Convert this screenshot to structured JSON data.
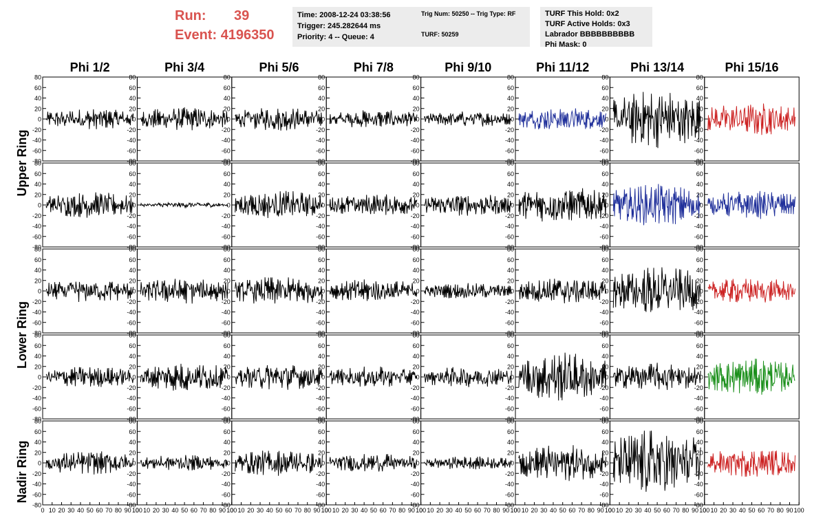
{
  "header": {
    "run_label": "Run:",
    "run_value": "39",
    "event_label": "Event:",
    "event_value": "4196350",
    "info_color": "#d9534f",
    "box1": [
      "Time: 2008-12-24 03:38:56",
      "Trigger: 245.282644 ms",
      "Priority: 4 -- Queue: 4"
    ],
    "box2": [
      "Trig Num: 50250 -- Trig Type: RF",
      "",
      "TURF: 50259"
    ],
    "box3": [
      "TURF This Hold: 0x2",
      "TURF Active Holds: 0x3",
      "Labrador BBBBBBBBBB",
      "Phi Mask: 0"
    ]
  },
  "chart_data": {
    "type": "line",
    "grid": false,
    "columns": [
      "Phi 1/2",
      "Phi 3/4",
      "Phi 5/6",
      "Phi 7/8",
      "Phi 9/10",
      "Phi 11/12",
      "Phi 13/14",
      "Phi 15/16"
    ],
    "ring_labels": [
      "Upper Ring",
      "Lower Ring",
      "Nadir Ring"
    ],
    "ylim": [
      -80,
      80
    ],
    "yticks": [
      "80",
      "60",
      "40",
      "20",
      "0",
      "-20",
      "-40",
      "-60",
      "-80"
    ],
    "xlim": [
      0,
      100
    ],
    "xticks": [
      "0",
      "10",
      "20",
      "30",
      "40",
      "50",
      "60",
      "70",
      "80",
      "90",
      "100"
    ],
    "colors": {
      "black": "#000000",
      "blue": "#1f2f9a",
      "red": "#cc2222",
      "green": "#1a8f1a"
    },
    "panels": [
      [
        {
          "color": "black",
          "amp": 16
        },
        {
          "color": "black",
          "amp": 18
        },
        {
          "color": "black",
          "amp": 18
        },
        {
          "color": "black",
          "amp": 14
        },
        {
          "color": "black",
          "amp": 12
        },
        {
          "color": "blue",
          "amp": 18
        },
        {
          "color": "black",
          "amp": 45
        },
        {
          "color": "red",
          "amp": 26
        }
      ],
      [
        {
          "color": "black",
          "amp": 20
        },
        {
          "color": "black",
          "amp": 4
        },
        {
          "color": "black",
          "amp": 22
        },
        {
          "color": "black",
          "amp": 17
        },
        {
          "color": "black",
          "amp": 17
        },
        {
          "color": "black",
          "amp": 28
        },
        {
          "color": "blue",
          "amp": 32
        },
        {
          "color": "blue",
          "amp": 22
        }
      ],
      [
        {
          "color": "black",
          "amp": 18
        },
        {
          "color": "black",
          "amp": 20
        },
        {
          "color": "black",
          "amp": 22
        },
        {
          "color": "black",
          "amp": 18
        },
        {
          "color": "black",
          "amp": 12
        },
        {
          "color": "black",
          "amp": 20
        },
        {
          "color": "black",
          "amp": 38
        },
        {
          "color": "red",
          "amp": 20
        }
      ],
      [
        {
          "color": "black",
          "amp": 16
        },
        {
          "color": "black",
          "amp": 22
        },
        {
          "color": "black",
          "amp": 20
        },
        {
          "color": "black",
          "amp": 16
        },
        {
          "color": "black",
          "amp": 16
        },
        {
          "color": "black",
          "amp": 38
        },
        {
          "color": "black",
          "amp": 22
        },
        {
          "color": "green",
          "amp": 28
        }
      ],
      [
        {
          "color": "black",
          "amp": 18
        },
        {
          "color": "black",
          "amp": 12
        },
        {
          "color": "black",
          "amp": 20
        },
        {
          "color": "black",
          "amp": 14
        },
        {
          "color": "black",
          "amp": 10
        },
        {
          "color": "black",
          "amp": 28
        },
        {
          "color": "black",
          "amp": 52
        },
        {
          "color": "red",
          "amp": 22
        }
      ]
    ]
  }
}
